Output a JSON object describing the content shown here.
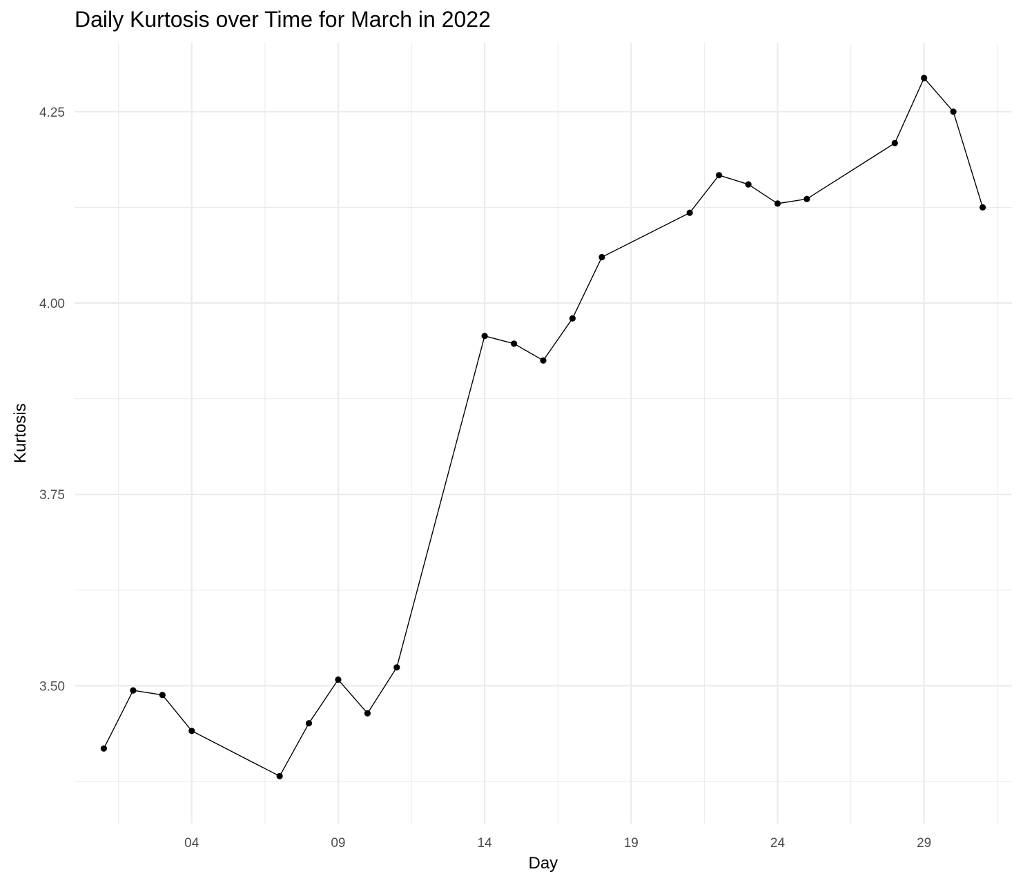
{
  "chart_data": {
    "type": "line",
    "title": "Daily Kurtosis over Time for March in 2022",
    "xlabel": "Day",
    "ylabel": "Kurtosis",
    "x_tick_labels": [
      "04",
      "09",
      "14",
      "19",
      "24",
      "29"
    ],
    "x_tick_values": [
      "2022-03-04",
      "2022-03-09",
      "2022-03-14",
      "2022-03-19",
      "2022-03-24",
      "2022-03-29"
    ],
    "y_tick_labels": [
      "3.50",
      "3.75",
      "4.00",
      "4.25"
    ],
    "y_tick_values": [
      3.5,
      3.75,
      4.0,
      4.25
    ],
    "xlim": [
      "2022-02-28",
      "2022-04-01"
    ],
    "ylim": [
      3.32,
      4.34
    ],
    "grid": true,
    "marker": "point",
    "line_color": "#000000",
    "grid_color": "#ebebeb",
    "series": [
      {
        "x": [
          "2022-03-01",
          "2022-03-02",
          "2022-03-03",
          "2022-03-04",
          "2022-03-07",
          "2022-03-08",
          "2022-03-09",
          "2022-03-10",
          "2022-03-11",
          "2022-03-14",
          "2022-03-15",
          "2022-03-16",
          "2022-03-17",
          "2022-03-18",
          "2022-03-21",
          "2022-03-22",
          "2022-03-23",
          "2022-03-24",
          "2022-03-25",
          "2022-03-28",
          "2022-03-29",
          "2022-03-30",
          "2022-03-31"
        ],
        "values": [
          3.418,
          3.494,
          3.488,
          3.441,
          3.382,
          3.451,
          3.508,
          3.464,
          3.524,
          3.957,
          3.947,
          3.925,
          3.98,
          4.06,
          4.118,
          4.167,
          4.155,
          4.13,
          4.136,
          4.209,
          4.294,
          4.25,
          4.125
        ]
      }
    ]
  }
}
